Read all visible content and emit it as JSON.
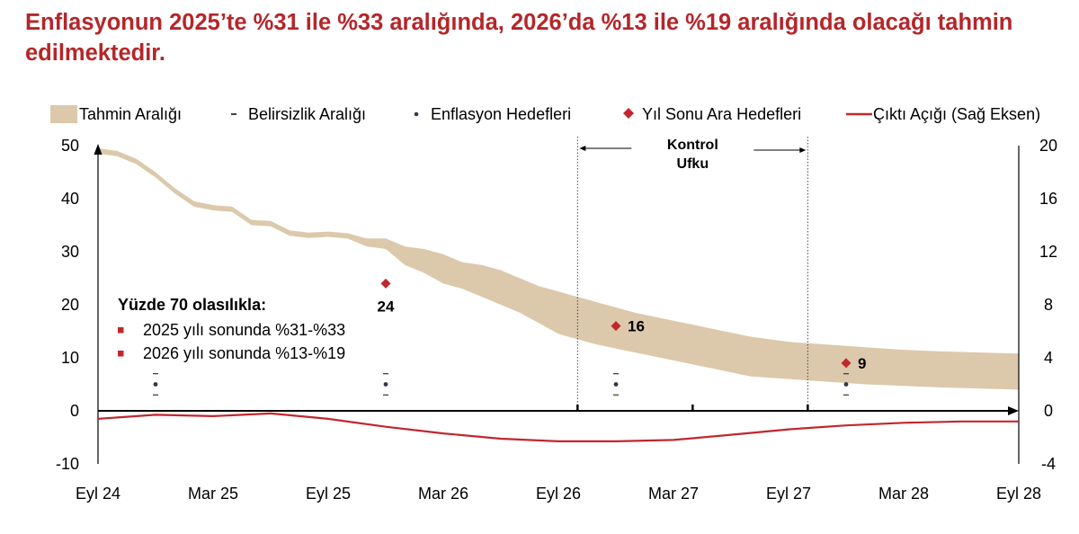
{
  "title": "Enflasyonun 2025’te %31 ile %33 aralığında, 2026’da %13 ile %19 aralığında olacağı tahmin edilmektedir.",
  "legend": [
    {
      "key": "band",
      "label": "Tahmin Aralığı"
    },
    {
      "key": "uncertainty",
      "label": "Belirsizlik Aralığı"
    },
    {
      "key": "targets",
      "label": "Enflasyon Hedefleri"
    },
    {
      "key": "interim",
      "label": "Yıl Sonu Ara Hedefleri"
    },
    {
      "key": "gap",
      "label": "Çıktı Açığı (Sağ Eksen)"
    }
  ],
  "control_horizon_label": [
    "Kontrol",
    "Ufku"
  ],
  "annotation": {
    "heading": "Yüzde 70 olasılıkla:",
    "items": [
      "2025 yılı sonunda %31-%33",
      "2026 yılı sonunda %13-%19"
    ]
  },
  "colors": {
    "title": "#b5262a",
    "band": "#dcc9ab",
    "gap_line": "#c1272d",
    "interim_marker": "#c1272d",
    "target_dot": "#2e3a4a",
    "axis": "#000000"
  },
  "chart_data": {
    "type": "area",
    "x_ticks": [
      "Eyl 24",
      "Mar 25",
      "Eyl 25",
      "Mar 26",
      "Eyl 26",
      "Mar 27",
      "Eyl 27",
      "Mar 28",
      "Eyl 28"
    ],
    "y_left": {
      "ticks": [
        50,
        40,
        30,
        20,
        10,
        0,
        -10
      ],
      "range": [
        -10,
        50
      ]
    },
    "y_right": {
      "ticks": [
        20,
        16,
        12,
        8,
        4,
        0,
        -4
      ],
      "range": [
        -4,
        20
      ]
    },
    "x_range_months": [
      0,
      48
    ],
    "band": {
      "name": "Tahmin Aralığı",
      "x": [
        0,
        1,
        2,
        3,
        4,
        5,
        6,
        7,
        8,
        9,
        10,
        11,
        12,
        13,
        14,
        15,
        16,
        17,
        18,
        19,
        20,
        21,
        22,
        23,
        24,
        26,
        28,
        30,
        32,
        34,
        36,
        38,
        40,
        42,
        44,
        46,
        48
      ],
      "upper": [
        49.5,
        49,
        47.5,
        45,
        42,
        39.5,
        38.8,
        38.5,
        36,
        35.8,
        34,
        33.6,
        33.8,
        33.5,
        32.5,
        32.5,
        31,
        30.5,
        29.5,
        28,
        27.5,
        26.5,
        25,
        23.5,
        22.5,
        20.5,
        18.5,
        17,
        15.5,
        14,
        13,
        12.5,
        12,
        11.5,
        11.2,
        11,
        10.8
      ],
      "lower": [
        48.5,
        48,
        46.5,
        44,
        41,
        38.5,
        37.8,
        37.5,
        35,
        34.8,
        33,
        32.6,
        32.8,
        32.5,
        31,
        30.5,
        27.5,
        26,
        24,
        23,
        21.5,
        20,
        18.5,
        16.5,
        14.5,
        12.5,
        11,
        9.5,
        8,
        6.5,
        6,
        5.5,
        5,
        4.7,
        4.4,
        4.2,
        4
      ]
    },
    "inflation_targets": {
      "x": [
        3,
        15,
        27,
        39
      ],
      "value": [
        5,
        5,
        5,
        5
      ],
      "upper": [
        7,
        7,
        7,
        7
      ],
      "lower": [
        3,
        3,
        3,
        3
      ]
    },
    "interim_targets": {
      "x": [
        15,
        27,
        39
      ],
      "values": [
        24,
        16,
        9
      ],
      "labels": [
        "24",
        "16",
        "9"
      ]
    },
    "output_gap": {
      "name": "Çıktı Açığı",
      "axis": "right",
      "x": [
        0,
        3,
        6,
        9,
        12,
        15,
        18,
        21,
        24,
        27,
        30,
        33,
        36,
        39,
        42,
        45,
        48
      ],
      "values": [
        -0.6,
        -0.3,
        -0.4,
        -0.2,
        -0.6,
        -1.2,
        -1.7,
        -2.1,
        -2.3,
        -2.3,
        -2.2,
        -1.8,
        -1.4,
        -1.1,
        -0.9,
        -0.8,
        -0.8
      ]
    },
    "control_horizon": {
      "start_month": 25,
      "end_month": 37
    },
    "grid": false
  }
}
